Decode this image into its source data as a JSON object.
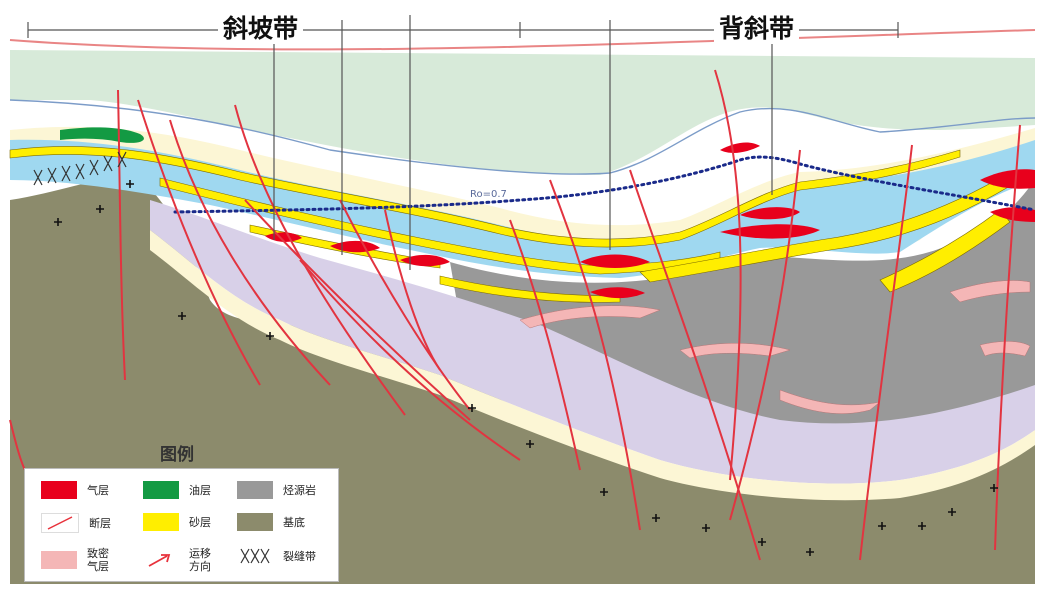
{
  "header": {
    "slope_zone_label": "斜坡带",
    "anticline_zone_label": "背斜带"
  },
  "section": {
    "ro_label": "Ro=0.7"
  },
  "legend": {
    "title": "图例",
    "items": [
      {
        "key": "gas",
        "label": "气层",
        "color": "#e8001c"
      },
      {
        "key": "oil",
        "label": "油层",
        "color": "#139a43"
      },
      {
        "key": "source",
        "label": "烃源岩",
        "color": "#999999"
      },
      {
        "key": "fault",
        "label": "断层",
        "color": "#e8323c"
      },
      {
        "key": "sand",
        "label": "砂层",
        "color": "#ffee00"
      },
      {
        "key": "basement",
        "label": "基底",
        "color": "#8c8b6c"
      },
      {
        "key": "tight-gas",
        "label": "致密\n气层",
        "color": "#f4b6b6"
      },
      {
        "key": "migration",
        "label": "运移\n方向",
        "color": "#e8323c"
      },
      {
        "key": "fracture",
        "label": "裂缝带",
        "color": "#333333"
      }
    ]
  },
  "colors": {
    "basement": "#8c8b6c",
    "upper": "#d7ead9",
    "cream": "#fcf6d5",
    "blue": "#9fd8f0",
    "source": "#999999",
    "lavender": "#d8d0e8",
    "yellow": "#ffee00",
    "red": "#e8001c",
    "pink": "#f4b6b6",
    "green": "#139a43",
    "fault": "#e23440",
    "dotted": "#1a2a8a"
  }
}
